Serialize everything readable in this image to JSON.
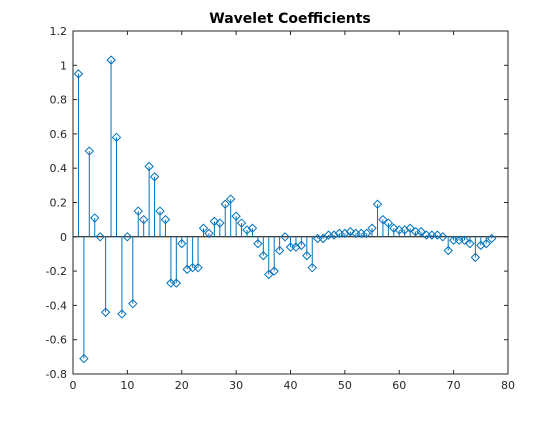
{
  "chart_data": {
    "type": "stem",
    "title": "Wavelet Coefficients",
    "xlabel": "",
    "ylabel": "",
    "xlim": [
      0,
      80
    ],
    "ylim": [
      -0.8,
      1.2
    ],
    "xticks": [
      "0",
      "10",
      "20",
      "30",
      "40",
      "50",
      "60",
      "70",
      "80"
    ],
    "xtick_values": [
      0,
      10,
      20,
      30,
      40,
      50,
      60,
      70,
      80
    ],
    "yticks": [
      "-0.8",
      "-0.6",
      "-0.4",
      "-0.2",
      "0",
      "0.2",
      "0.4",
      "0.6",
      "0.8",
      "1",
      "1.2"
    ],
    "ytick_values": [
      -0.8,
      -0.6,
      -0.4,
      -0.2,
      0,
      0.2,
      0.4,
      0.6,
      0.8,
      1,
      1.2
    ],
    "grid": false,
    "marker": "diamond",
    "color": "#0072BD",
    "x": [
      1,
      2,
      3,
      4,
      5,
      6,
      7,
      8,
      9,
      10,
      11,
      12,
      13,
      14,
      15,
      16,
      17,
      18,
      19,
      20,
      21,
      22,
      23,
      24,
      25,
      26,
      27,
      28,
      29,
      30,
      31,
      32,
      33,
      34,
      35,
      36,
      37,
      38,
      39,
      40,
      41,
      42,
      43,
      44,
      45,
      46,
      47,
      48,
      49,
      50,
      51,
      52,
      53,
      54,
      55,
      56,
      57,
      58,
      59,
      60,
      61,
      62,
      63,
      64,
      65,
      66,
      67,
      68,
      69,
      70,
      71,
      72,
      73,
      74,
      75,
      76,
      77
    ],
    "values": [
      0.95,
      -0.71,
      0.5,
      0.11,
      0.0,
      -0.44,
      1.03,
      0.58,
      -0.45,
      0.0,
      -0.39,
      0.15,
      0.1,
      0.41,
      0.35,
      0.15,
      0.1,
      -0.27,
      -0.27,
      -0.04,
      -0.19,
      -0.18,
      -0.18,
      0.05,
      0.02,
      0.09,
      0.08,
      0.19,
      0.22,
      0.12,
      0.08,
      0.04,
      0.05,
      -0.04,
      -0.11,
      -0.22,
      -0.2,
      -0.08,
      0.0,
      -0.06,
      -0.06,
      -0.05,
      -0.11,
      -0.18,
      -0.01,
      -0.01,
      0.01,
      0.01,
      0.02,
      0.02,
      0.03,
      0.02,
      0.02,
      0.02,
      0.05,
      0.19,
      0.1,
      0.08,
      0.05,
      0.04,
      0.04,
      0.05,
      0.03,
      0.03,
      0.01,
      0.01,
      0.01,
      0.0,
      -0.08,
      -0.02,
      -0.02,
      -0.02,
      -0.04,
      -0.12,
      -0.05,
      -0.04,
      -0.01
    ]
  }
}
